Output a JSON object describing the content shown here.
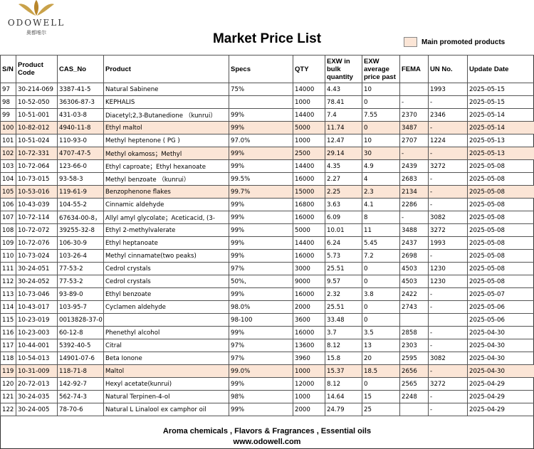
{
  "header": {
    "brand": "ODOWELL",
    "brand_cn": "奥都唯尔",
    "title": "Market Price List",
    "legend": "Main promoted products"
  },
  "table": {
    "columns": [
      "S/N",
      "Product Code",
      "CAS_No",
      "Product",
      "Specs",
      "QTY",
      "EXW in bulk quantity",
      "EXW average price past",
      "FEMA",
      "UN No.",
      "Update Date"
    ],
    "rows": [
      {
        "cells": [
          "97",
          "30-214-069",
          "3387-41-5",
          "Natural Sabinene",
          "75%",
          "14000",
          "4.43",
          "10",
          null,
          "1993",
          "2025-05-15"
        ]
      },
      {
        "cells": [
          "98",
          "10-52-050",
          "36306-87-3",
          "KEPHALIS",
          null,
          "1000",
          "78.41",
          "0",
          "-",
          "-",
          "2025-05-15"
        ]
      },
      {
        "cells": [
          "99",
          "10-51-001",
          "431-03-8",
          "Diacetyl;2,3-Butanedione （kunrui）",
          "99%",
          "14400",
          "7.4",
          "7.55",
          "2370",
          "2346",
          "2025-05-14"
        ]
      },
      {
        "cells": [
          "100",
          "10-82-012",
          "4940-11-8",
          "Ethyl maltol",
          "99%",
          "5000",
          "11.74",
          "0",
          "3487",
          "-",
          "2025-05-14"
        ],
        "promoted": true
      },
      {
        "cells": [
          "101",
          "10-51-024",
          "110-93-0",
          "Methyl heptenone ( PG )",
          "97.0%",
          "1000",
          "12.47",
          "10",
          "2707",
          "1224",
          "2025-05-13"
        ]
      },
      {
        "cells": [
          "102",
          "10-72-331",
          "4707-47-5",
          "Methyl okamoss；Methyl",
          "99%",
          "2500",
          "29.14",
          "30",
          "-",
          "-",
          "2025-05-13"
        ],
        "promoted": true
      },
      {
        "cells": [
          "103",
          "10-72-064",
          "123-66-0",
          "Ethyl caproate；Ethyl hexanoate",
          "99%",
          "14400",
          "4.35",
          "4.9",
          "2439",
          "3272",
          "2025-05-08"
        ]
      },
      {
        "cells": [
          "104",
          "10-73-015",
          "93-58-3",
          "Methyl benzoate （kunrui）",
          "99.5%",
          "16000",
          "2.27",
          "4",
          "2683",
          "-",
          "2025-05-08"
        ]
      },
      {
        "cells": [
          "105",
          "10-53-016",
          "119-61-9",
          "Benzophenone flakes",
          "99.7%",
          "15000",
          "2.25",
          "2.3",
          "2134",
          "-",
          "2025-05-08"
        ],
        "promoted": true
      },
      {
        "cells": [
          "106",
          "10-43-039",
          "104-55-2",
          "Cinnamic aldehyde",
          "99%",
          "16800",
          "3.63",
          "4.1",
          "2286",
          "-",
          "2025-05-08"
        ]
      },
      {
        "cells": [
          "107",
          "10-72-114",
          "67634-00-8，",
          "Allyl amyl glycolate；Aceticacid, (3-",
          "99%",
          "16000",
          "6.09",
          "8",
          "-",
          "3082",
          "2025-05-08"
        ]
      },
      {
        "cells": [
          "108",
          "10-72-072",
          "39255-32-8",
          "Ethyl 2-methylvalerate",
          "99%",
          "5000",
          "10.01",
          "11",
          "3488",
          "3272",
          "2025-05-08"
        ]
      },
      {
        "cells": [
          "109",
          "10-72-076",
          "106-30-9",
          "Ethyl heptanoate",
          "99%",
          "14400",
          "6.24",
          "5.45",
          "2437",
          "1993",
          "2025-05-08"
        ]
      },
      {
        "cells": [
          "110",
          "10-73-024",
          "103-26-4",
          "Methyl cinnamate(two peaks)",
          "99%",
          "16000",
          "5.73",
          "7.2",
          "2698",
          "-",
          "2025-05-08"
        ]
      },
      {
        "cells": [
          "111",
          "30-24-051",
          "77-53-2",
          "Cedrol crystals",
          "97%",
          "3000",
          "25.51",
          "0",
          "4503",
          "1230",
          "2025-05-08"
        ]
      },
      {
        "cells": [
          "112",
          "30-24-052",
          "77-53-2",
          "Cedrol crystals",
          "50%,",
          "9000",
          "9.57",
          "0",
          "4503",
          "1230",
          "2025-05-08"
        ]
      },
      {
        "cells": [
          "113",
          "10-73-046",
          "93-89-0",
          "Ethyl benzoate",
          "99%",
          "16000",
          "2.32",
          "3.8",
          "2422",
          "-",
          "2025-05-07"
        ]
      },
      {
        "cells": [
          "114",
          "10-43-017",
          "103-95-7",
          "Cyclamen aldehyde",
          "98.0%",
          "2000",
          "25.51",
          "0",
          "2743",
          "-",
          "2025-05-06"
        ]
      },
      {
        "cells": [
          "115",
          "10-23-019",
          "0013828-37-0",
          null,
          "98-100",
          "3600",
          "33.48",
          "0",
          null,
          null,
          "2025-05-06"
        ]
      },
      {
        "cells": [
          "116",
          "10-23-003",
          "60-12-8",
          "Phenethyl alcohol",
          "99%",
          "16000",
          "3.7",
          "3.5",
          "2858",
          "-",
          "2025-04-30"
        ]
      },
      {
        "cells": [
          "117",
          "10-44-001",
          "5392-40-5",
          "Citral",
          "97%",
          "13600",
          "8.12",
          "13",
          "2303",
          "-",
          "2025-04-30"
        ]
      },
      {
        "cells": [
          "118",
          "10-54-013",
          "14901-07-6",
          "Beta Ionone",
          "97%",
          "3960",
          "15.8",
          "20",
          "2595",
          "3082",
          "2025-04-30"
        ]
      },
      {
        "cells": [
          "119",
          "10-31-009",
          "118-71-8",
          "Maltol",
          "99.0%",
          "1000",
          "15.37",
          "18.5",
          "2656",
          "-",
          "2025-04-30"
        ],
        "promoted": true
      },
      {
        "cells": [
          "120",
          "20-72-013",
          "142-92-7",
          "Hexyl acetate(kunrui)",
          "99%",
          "12000",
          "8.12",
          "0",
          "2565",
          "3272",
          "2025-04-29"
        ]
      },
      {
        "cells": [
          "121",
          "30-24-035",
          "562-74-3",
          "Natural Terpinen-4-ol",
          "98%",
          "1000",
          "14.64",
          "15",
          "2248",
          "-",
          "2025-04-29"
        ]
      },
      {
        "cells": [
          "122",
          "30-24-005",
          "78-70-6",
          "Natural L Linalool ex camphor oil",
          "99%",
          "2000",
          "24.79",
          "25",
          null,
          "-",
          "2025-04-29"
        ]
      }
    ]
  },
  "footer": {
    "line1": "Aroma chemicals , Flavors & Fragrances , Essential oils",
    "line2": "www.odowell.com"
  }
}
